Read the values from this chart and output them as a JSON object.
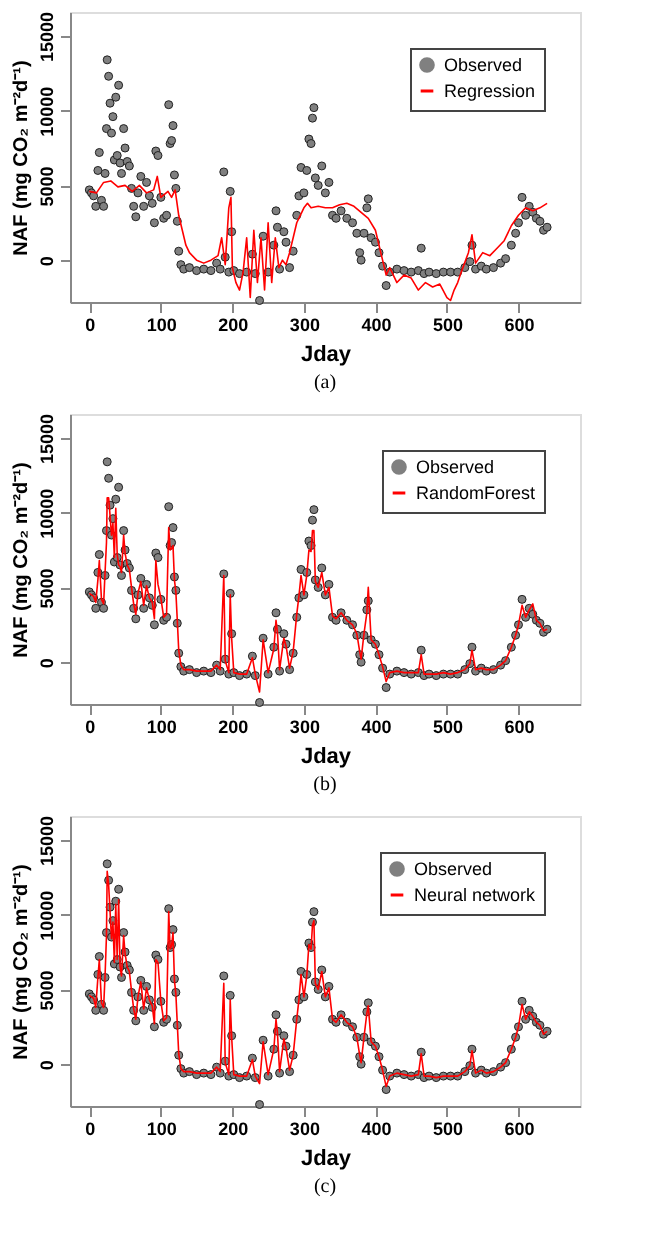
{
  "chart_data": [
    {
      "type": "scatter",
      "xlabel": "Jday",
      "ylabel": "NAF (mg CO₂ m⁻²d⁻¹)",
      "annotations": [
        "(a)"
      ],
      "xlim": [
        -27,
        686
      ],
      "ylim": [
        -2800,
        16600
      ],
      "xticks": [
        0,
        100,
        200,
        300,
        400,
        500,
        600
      ],
      "yticks": [
        0,
        5000,
        10000,
        15000
      ],
      "grid": false,
      "legend": "top right",
      "x": [
        0,
        3,
        6,
        9,
        12,
        14,
        17,
        20,
        22,
        24,
        25,
        27,
        29,
        31,
        33,
        35,
        37,
        39,
        41,
        43,
        45,
        48,
        50,
        53,
        56,
        59,
        62,
        65,
        68,
        72,
        76,
        80,
        84,
        88,
        91,
        93,
        96,
        100,
        104,
        108,
        111,
        113,
        115,
        117,
        119,
        121,
        123,
        125,
        128,
        132,
        140,
        150,
        160,
        170,
        178,
        183,
        188,
        190,
        195,
        197,
        199,
        202,
        210,
        220,
        228,
        232,
        238,
        243,
        250,
        258,
        261,
        263,
        266,
        272,
        275,
        280,
        285,
        290,
        293,
        296,
        300,
        304,
        307,
        310,
        312,
        314,
        316,
        320,
        325,
        330,
        335,
        340,
        345,
        352,
        360,
        368,
        374,
        378,
        380,
        384,
        388,
        390,
        394,
        400,
        405,
        410,
        415,
        420,
        430,
        440,
        450,
        460,
        464,
        468,
        475,
        485,
        495,
        505,
        515,
        525,
        532,
        535,
        540,
        548,
        555,
        565,
        575,
        582,
        590,
        596,
        600,
        605,
        610,
        615,
        620,
        625,
        630,
        635,
        640
      ],
      "series": [
        {
          "name": "Observed",
          "type": "scatter",
          "marker": "circle",
          "color": "#808080",
          "values": [
            4700,
            4500,
            4300,
            3600,
            6000,
            7200,
            4000,
            3600,
            5800,
            8800,
            13400,
            12300,
            10500,
            8500,
            9600,
            6700,
            10900,
            7000,
            11700,
            6500,
            5800,
            8800,
            7500,
            6600,
            6300,
            4800,
            3600,
            2900,
            4500,
            5600,
            3600,
            5200,
            4300,
            3800,
            2500,
            7300,
            7000,
            4200,
            2800,
            3000,
            10400,
            7800,
            8000,
            9000,
            5700,
            4800,
            2600,
            600,
            -300,
            -600,
            -500,
            -700,
            -600,
            -700,
            -200,
            -600,
            5900,
            200,
            -800,
            4600,
            1900,
            -700,
            -900,
            -800,
            400,
            -900,
            -2700,
            1600,
            -800,
            1000,
            3300,
            2200,
            -600,
            1900,
            1200,
            -500,
            600,
            3000,
            4300,
            6200,
            4500,
            6000,
            8100,
            7800,
            9500,
            10200,
            5500,
            5000,
            6300,
            4500,
            5200,
            3000,
            2800,
            3300,
            2800,
            2500,
            1800,
            500,
            0,
            1800,
            3500,
            4100,
            1500,
            1200,
            500,
            -400,
            -1700,
            -800,
            -600,
            -700,
            -800,
            -700,
            800,
            -900,
            -800,
            -900,
            -800,
            -800,
            -800,
            -500,
            -100,
            1000,
            -600,
            -400,
            -600,
            -500,
            -200,
            100,
            1000,
            1800,
            2500,
            4200,
            3000,
            3600,
            3200,
            2800,
            2600,
            2000,
            2200
          ]
        },
        {
          "name": "Regression",
          "type": "line",
          "marker": "none",
          "line_style": "solid",
          "color": "#ff0000",
          "x": [
            0,
            10,
            20,
            30,
            40,
            50,
            60,
            70,
            80,
            90,
            95,
            100,
            110,
            115,
            120,
            125,
            130,
            135,
            140,
            150,
            160,
            170,
            180,
            185,
            190,
            195,
            198,
            200,
            205,
            210,
            215,
            220,
            225,
            230,
            235,
            240,
            245,
            250,
            255,
            260,
            265,
            270,
            275,
            280,
            285,
            290,
            295,
            300,
            305,
            310,
            320,
            330,
            340,
            350,
            360,
            370,
            380,
            390,
            400,
            410,
            415,
            420,
            430,
            440,
            450,
            460,
            470,
            480,
            490,
            500,
            505,
            510,
            515,
            520,
            530,
            535,
            540,
            550,
            560,
            570,
            580,
            590,
            600,
            610,
            620,
            630,
            640
          ],
          "values": [
            4600,
            4500,
            5200,
            5300,
            4900,
            5000,
            4600,
            5000,
            4500,
            4700,
            5600,
            4200,
            4600,
            4200,
            4700,
            3000,
            2000,
            1000,
            500,
            0,
            -200,
            0,
            300,
            1500,
            -300,
            3500,
            4200,
            -500,
            -1500,
            -2000,
            -800,
            1500,
            -2500,
            2000,
            -1500,
            1500,
            -2000,
            2500,
            -1500,
            1500,
            -500,
            0,
            -300,
            500,
            1500,
            2500,
            3000,
            3500,
            3800,
            3500,
            3600,
            3500,
            3500,
            3700,
            3800,
            3600,
            3200,
            2800,
            2000,
            0,
            -1000,
            -500,
            -1500,
            -1000,
            -1200,
            -2000,
            -1500,
            -1800,
            -1600,
            -2500,
            -2700,
            -2000,
            -1500,
            -800,
            500,
            1700,
            -200,
            500,
            300,
            800,
            1300,
            2300,
            3000,
            3500,
            3300,
            3500,
            3800
          ]
        }
      ]
    },
    {
      "type": "scatter",
      "xlabel": "Jday",
      "ylabel": "NAF (mg CO₂ m⁻²d⁻¹)",
      "annotations": [
        "(b)"
      ],
      "xlim": [
        -27,
        686
      ],
      "ylim": [
        -2800,
        16600
      ],
      "xticks": [
        0,
        100,
        200,
        300,
        400,
        500,
        600
      ],
      "yticks": [
        0,
        5000,
        10000,
        15000
      ],
      "grid": false,
      "legend": "top right",
      "x": [
        0,
        3,
        6,
        9,
        12,
        14,
        17,
        20,
        22,
        24,
        25,
        27,
        29,
        31,
        33,
        35,
        37,
        39,
        41,
        43,
        45,
        48,
        50,
        53,
        56,
        59,
        62,
        65,
        68,
        72,
        76,
        80,
        84,
        88,
        91,
        93,
        96,
        100,
        104,
        108,
        111,
        113,
        115,
        117,
        119,
        121,
        123,
        125,
        128,
        132,
        140,
        150,
        160,
        170,
        178,
        183,
        188,
        190,
        195,
        197,
        199,
        202,
        210,
        220,
        228,
        232,
        238,
        243,
        250,
        258,
        261,
        263,
        266,
        272,
        275,
        280,
        285,
        290,
        293,
        296,
        300,
        304,
        307,
        310,
        312,
        314,
        316,
        320,
        325,
        330,
        335,
        340,
        345,
        352,
        360,
        368,
        374,
        378,
        380,
        384,
        388,
        390,
        394,
        400,
        405,
        410,
        415,
        420,
        430,
        440,
        450,
        460,
        464,
        468,
        475,
        485,
        495,
        505,
        515,
        525,
        532,
        535,
        540,
        548,
        555,
        565,
        575,
        582,
        590,
        596,
        600,
        605,
        610,
        615,
        620,
        625,
        630,
        635,
        640
      ],
      "series": [
        {
          "name": "Observed",
          "type": "scatter",
          "marker": "circle",
          "color": "#808080",
          "values": [
            4700,
            4500,
            4300,
            3600,
            6000,
            7200,
            4000,
            3600,
            5800,
            8800,
            13400,
            12300,
            10500,
            8500,
            9600,
            6700,
            10900,
            7000,
            11700,
            6500,
            5800,
            8800,
            7500,
            6600,
            6300,
            4800,
            3600,
            2900,
            4500,
            5600,
            3600,
            5200,
            4300,
            3800,
            2500,
            7300,
            7000,
            4200,
            2800,
            3000,
            10400,
            7800,
            8000,
            9000,
            5700,
            4800,
            2600,
            600,
            -300,
            -600,
            -500,
            -700,
            -600,
            -700,
            -200,
            -600,
            5900,
            200,
            -800,
            4600,
            1900,
            -700,
            -900,
            -800,
            400,
            -900,
            -2700,
            1600,
            -800,
            1000,
            3300,
            2200,
            -600,
            1900,
            1200,
            -500,
            600,
            3000,
            4300,
            6200,
            4500,
            6000,
            8100,
            7800,
            9500,
            10200,
            5500,
            5000,
            6300,
            4500,
            5200,
            3000,
            2800,
            3300,
            2800,
            2500,
            1800,
            500,
            0,
            1800,
            3500,
            4100,
            1500,
            1200,
            500,
            -400,
            -1700,
            -800,
            -600,
            -700,
            -800,
            -700,
            800,
            -900,
            -800,
            -900,
            -800,
            -800,
            -800,
            -500,
            -100,
            1000,
            -600,
            -400,
            -600,
            -500,
            -200,
            100,
            1000,
            1800,
            2500,
            4200,
            3000,
            3600,
            3200,
            2800,
            2600,
            2000,
            2200
          ]
        },
        {
          "name": "RandomForest",
          "type": "line",
          "marker": "none",
          "line_style": "solid",
          "color": "#ff0000",
          "values": [
            4600,
            4500,
            4400,
            4000,
            5500,
            6800,
            4200,
            3900,
            6000,
            8000,
            11000,
            11000,
            9800,
            8500,
            9300,
            7000,
            10300,
            7200,
            6500,
            6400,
            6000,
            8500,
            7300,
            6500,
            6200,
            5000,
            3900,
            3200,
            4600,
            5400,
            3800,
            5100,
            4300,
            4000,
            2900,
            6800,
            5200,
            4300,
            3000,
            3200,
            9000,
            7500,
            7600,
            7800,
            5500,
            4700,
            2800,
            800,
            -200,
            -500,
            -500,
            -600,
            -600,
            -600,
            -200,
            -500,
            5800,
            100,
            -700,
            4500,
            1600,
            -700,
            -800,
            -800,
            300,
            -800,
            -2000,
            1500,
            -700,
            900,
            2800,
            2000,
            -500,
            1600,
            1100,
            -400,
            700,
            3200,
            4400,
            5800,
            4500,
            5800,
            7500,
            7400,
            8800,
            8800,
            5400,
            5000,
            6000,
            4500,
            5000,
            3100,
            2900,
            3300,
            2800,
            2500,
            1900,
            700,
            200,
            1900,
            3300,
            5000,
            1500,
            1200,
            500,
            -300,
            -1300,
            -700,
            -600,
            -700,
            -700,
            -700,
            500,
            -800,
            -800,
            -800,
            -700,
            -800,
            -700,
            -500,
            -100,
            800,
            -500,
            -400,
            -500,
            -500,
            -200,
            100,
            1000,
            1800,
            2500,
            3800,
            3000,
            3500,
            3900,
            2800,
            2600,
            2100,
            2200
          ]
        }
      ]
    },
    {
      "type": "scatter",
      "xlabel": "Jday",
      "ylabel": "NAF (mg CO₂ m⁻²d⁻¹)",
      "annotations": [
        "(c)"
      ],
      "xlim": [
        -27,
        686
      ],
      "ylim": [
        -2800,
        16600
      ],
      "xticks": [
        0,
        100,
        200,
        300,
        400,
        500,
        600
      ],
      "yticks": [
        0,
        5000,
        10000,
        15000
      ],
      "grid": false,
      "legend": "top right",
      "x": [
        0,
        3,
        6,
        9,
        12,
        14,
        17,
        20,
        22,
        24,
        25,
        27,
        29,
        31,
        33,
        35,
        37,
        39,
        41,
        43,
        45,
        48,
        50,
        53,
        56,
        59,
        62,
        65,
        68,
        72,
        76,
        80,
        84,
        88,
        91,
        93,
        96,
        100,
        104,
        108,
        111,
        113,
        115,
        117,
        119,
        121,
        123,
        125,
        128,
        132,
        140,
        150,
        160,
        170,
        178,
        183,
        188,
        190,
        195,
        197,
        199,
        202,
        210,
        220,
        228,
        232,
        238,
        243,
        250,
        258,
        261,
        263,
        266,
        272,
        275,
        280,
        285,
        290,
        293,
        296,
        300,
        304,
        307,
        310,
        312,
        314,
        316,
        320,
        325,
        330,
        335,
        340,
        345,
        352,
        360,
        368,
        374,
        378,
        380,
        384,
        388,
        390,
        394,
        400,
        405,
        410,
        415,
        420,
        430,
        440,
        450,
        460,
        464,
        468,
        475,
        485,
        495,
        505,
        515,
        525,
        532,
        535,
        540,
        548,
        555,
        565,
        575,
        582,
        590,
        596,
        600,
        605,
        610,
        615,
        620,
        625,
        630,
        635,
        640
      ],
      "series": [
        {
          "name": "Observed",
          "type": "scatter",
          "marker": "circle",
          "color": "#808080",
          "values": [
            4700,
            4500,
            4300,
            3600,
            6000,
            7200,
            4000,
            3600,
            5800,
            8800,
            13400,
            12300,
            10500,
            8500,
            9600,
            6700,
            10900,
            7000,
            11700,
            6500,
            5800,
            8800,
            7500,
            6600,
            6300,
            4800,
            3600,
            2900,
            4500,
            5600,
            3600,
            5200,
            4300,
            3800,
            2500,
            7300,
            7000,
            4200,
            2800,
            3000,
            10400,
            7800,
            8000,
            9000,
            5700,
            4800,
            2600,
            600,
            -300,
            -600,
            -500,
            -700,
            -600,
            -700,
            -200,
            -600,
            5900,
            200,
            -800,
            4600,
            1900,
            -700,
            -900,
            -800,
            400,
            -900,
            -2700,
            1600,
            -800,
            1000,
            3300,
            2200,
            -600,
            1900,
            1200,
            -500,
            600,
            3000,
            4300,
            6200,
            4500,
            6000,
            8100,
            7800,
            9500,
            10200,
            5500,
            5000,
            6300,
            4500,
            5200,
            3000,
            2800,
            3300,
            2800,
            2500,
            1800,
            500,
            0,
            1800,
            3500,
            4100,
            1500,
            1200,
            500,
            -400,
            -1700,
            -800,
            -600,
            -700,
            -800,
            -700,
            800,
            -900,
            -800,
            -900,
            -800,
            -800,
            -800,
            -500,
            -100,
            1000,
            -600,
            -400,
            -600,
            -500,
            -200,
            100,
            1000,
            1800,
            2500,
            4200,
            3000,
            3600,
            3200,
            2800,
            2600,
            2000,
            2200
          ]
        },
        {
          "name": "Neural network",
          "type": "line",
          "marker": "none",
          "line_style": "solid",
          "color": "#ff0000",
          "values": [
            4600,
            4500,
            4400,
            3800,
            5800,
            7000,
            4100,
            3800,
            5900,
            8600,
            12900,
            12000,
            10200,
            8400,
            9500,
            6800,
            10700,
            7000,
            11000,
            6500,
            5900,
            8600,
            7400,
            6500,
            6200,
            4900,
            3700,
            3000,
            4500,
            5500,
            3700,
            5100,
            4300,
            3900,
            2700,
            7000,
            6800,
            4200,
            2900,
            3100,
            10200,
            7700,
            7900,
            8800,
            5600,
            4700,
            2700,
            700,
            -300,
            -500,
            -500,
            -600,
            -600,
            -600,
            -200,
            -500,
            5400,
            100,
            -700,
            4300,
            1800,
            -700,
            -800,
            -800,
            300,
            -800,
            -1300,
            1500,
            -700,
            1000,
            3000,
            2100,
            -500,
            1700,
            1100,
            -400,
            600,
            3000,
            4300,
            6000,
            4500,
            5900,
            8000,
            7700,
            9300,
            9600,
            5400,
            5000,
            6200,
            4500,
            5100,
            3000,
            2800,
            3300,
            2800,
            2500,
            1800,
            600,
            100,
            1800,
            3400,
            3900,
            1500,
            1200,
            500,
            -400,
            -1500,
            -800,
            -600,
            -700,
            -800,
            -700,
            700,
            -800,
            -800,
            -900,
            -800,
            -800,
            -800,
            -500,
            -100,
            900,
            -600,
            -400,
            -600,
            -500,
            -200,
            100,
            1000,
            1800,
            2500,
            4000,
            3000,
            3500,
            3200,
            2800,
            2600,
            2000,
            2200
          ]
        }
      ]
    }
  ]
}
